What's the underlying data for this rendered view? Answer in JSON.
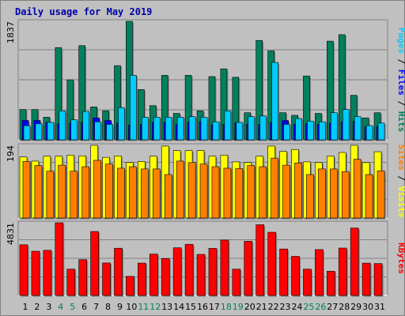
{
  "title": "Daily usage for May 2019",
  "colors": {
    "hits": "#00805c",
    "files": "#0000ff",
    "pages": "#00ccff",
    "visits": "#ffff00",
    "sites": "#ff8000",
    "kbytes": "#ff0000",
    "weekend": "#00805c",
    "weekday": "#000000",
    "title": "#0000aa"
  },
  "chart_data": [
    {
      "type": "bar",
      "panel": "top",
      "ymax_label": "1837",
      "ylim": [
        0,
        1837
      ],
      "legend": [
        "Pages",
        "Files",
        "Hits"
      ],
      "categories": [
        "1",
        "2",
        "3",
        "4",
        "5",
        "6",
        "7",
        "8",
        "9",
        "10",
        "11",
        "12",
        "13",
        "14",
        "15",
        "16",
        "17",
        "18",
        "19",
        "20",
        "21",
        "22",
        "23",
        "24",
        "25",
        "26",
        "27",
        "28",
        "29",
        "30",
        "31"
      ],
      "weekend_days": [
        "4",
        "5",
        "11",
        "12",
        "18",
        "19",
        "25",
        "26"
      ],
      "series": [
        {
          "name": "Hits",
          "values": [
            470,
            470,
            350,
            1430,
            930,
            1460,
            510,
            450,
            1150,
            1837,
            780,
            530,
            1000,
            410,
            1000,
            450,
            980,
            1100,
            970,
            420,
            1540,
            1380,
            420,
            380,
            990,
            410,
            1530,
            1630,
            690,
            340,
            420
          ]
        },
        {
          "name": "Files",
          "values": [
            300,
            300,
            270,
            250,
            260,
            270,
            340,
            300,
            260,
            230,
            240,
            270,
            270,
            240,
            270,
            280,
            230,
            240,
            260,
            240,
            240,
            270,
            300,
            240,
            250,
            240,
            260,
            280,
            290,
            200,
            210
          ]
        },
        {
          "name": "Pages",
          "values": [
            220,
            250,
            270,
            450,
            310,
            440,
            280,
            240,
            500,
            1000,
            350,
            350,
            350,
            350,
            360,
            350,
            280,
            450,
            270,
            360,
            370,
            1200,
            240,
            330,
            290,
            280,
            420,
            470,
            360,
            220,
            260
          ]
        }
      ]
    },
    {
      "type": "bar",
      "panel": "middle",
      "ymax_label": "194",
      "ylim": [
        0,
        194
      ],
      "legend": [
        "Sites",
        "Visits"
      ],
      "categories": [
        "1",
        "2",
        "3",
        "4",
        "5",
        "6",
        "7",
        "8",
        "9",
        "10",
        "11",
        "12",
        "13",
        "14",
        "15",
        "16",
        "17",
        "18",
        "19",
        "20",
        "21",
        "22",
        "23",
        "24",
        "25",
        "26",
        "27",
        "28",
        "29",
        "30",
        "31"
      ],
      "series": [
        {
          "name": "Visits",
          "values": [
            163,
            152,
            165,
            165,
            168,
            166,
            194,
            162,
            166,
            148,
            151,
            165,
            192,
            180,
            180,
            180,
            165,
            168,
            150,
            148,
            165,
            192,
            178,
            183,
            150,
            148,
            165,
            175,
            194,
            148,
            177
          ]
        },
        {
          "name": "Sites",
          "values": [
            151,
            140,
            125,
            141,
            125,
            137,
            154,
            144,
            133,
            137,
            131,
            131,
            116,
            152,
            148,
            144,
            137,
            133,
            132,
            140,
            137,
            160,
            141,
            147,
            116,
            131,
            131,
            124,
            157,
            116,
            126
          ]
        }
      ]
    },
    {
      "type": "bar",
      "panel": "bottom",
      "ymax_label": "4831",
      "ylim": [
        0,
        4831
      ],
      "legend": [
        "KBytes"
      ],
      "categories": [
        "1",
        "2",
        "3",
        "4",
        "5",
        "6",
        "7",
        "8",
        "9",
        "10",
        "11",
        "12",
        "13",
        "14",
        "15",
        "16",
        "17",
        "18",
        "19",
        "20",
        "21",
        "22",
        "23",
        "24",
        "25",
        "26",
        "27",
        "28",
        "29",
        "30",
        "31"
      ],
      "series": [
        {
          "name": "KBytes",
          "values": [
            3370,
            2940,
            3000,
            4831,
            1750,
            2380,
            4250,
            2160,
            3140,
            1270,
            2150,
            2750,
            2450,
            3170,
            3400,
            2730,
            3130,
            3680,
            1750,
            3600,
            4700,
            4200,
            3090,
            2600,
            1750,
            3050,
            1610,
            3150,
            4480,
            2150,
            2120
          ]
        }
      ]
    }
  ]
}
